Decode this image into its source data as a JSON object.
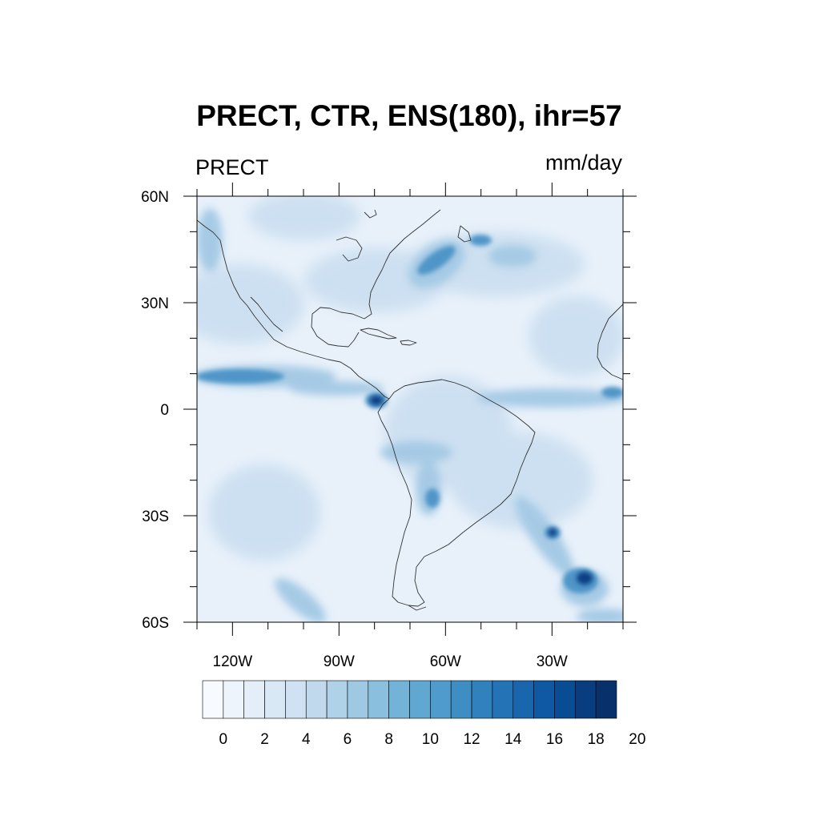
{
  "title": "PRECT, CTR, ENS(180), ihr=57",
  "left_label": "PRECT",
  "right_label": "mm/day",
  "lat_ticks": [
    "60N",
    "30N",
    "0",
    "30S",
    "60S"
  ],
  "lon_ticks": [
    "120W",
    "90W",
    "60W",
    "30W"
  ],
  "colorbar": {
    "labels": [
      "0",
      "2",
      "4",
      "6",
      "8",
      "10",
      "12",
      "14",
      "16",
      "18",
      "20"
    ],
    "colors": [
      "#f7fbff",
      "#edf4fc",
      "#e3eef9",
      "#d9e8f5",
      "#cfe1f2",
      "#c1d9ed",
      "#b0d2e8",
      "#9fc9e2",
      "#8ac0dd",
      "#73b3d8",
      "#60a7d2",
      "#4f9bcb",
      "#3e8ec4",
      "#3181bd",
      "#2373b6",
      "#1966ad",
      "#0f59a3",
      "#084c94",
      "#083e80",
      "#08306b"
    ]
  },
  "map": {
    "lon_range": [
      -130,
      -10
    ],
    "lat_range": [
      -60,
      60
    ],
    "background_color": "#e8f1fa"
  }
}
